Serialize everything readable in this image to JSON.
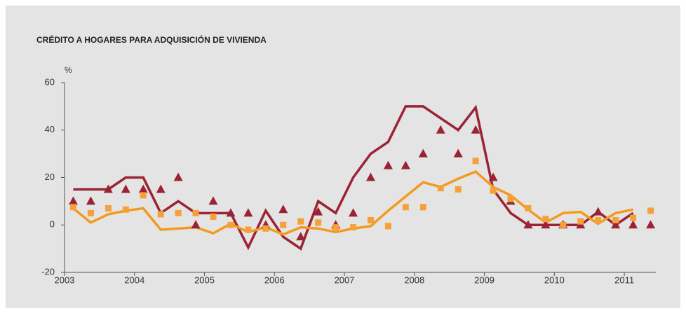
{
  "chart_data": {
    "type": "line",
    "title": "CRÉDITO A HOGARES PARA ADQUISICIÓN DE VIVIENDA",
    "y_unit": "%",
    "x": [
      2003.125,
      2003.375,
      2003.625,
      2003.875,
      2004.125,
      2004.375,
      2004.625,
      2004.875,
      2005.125,
      2005.375,
      2005.625,
      2005.875,
      2006.125,
      2006.375,
      2006.625,
      2006.875,
      2007.125,
      2007.375,
      2007.625,
      2007.875,
      2008.125,
      2008.375,
      2008.625,
      2008.875,
      2009.125,
      2009.375,
      2009.625,
      2009.875,
      2010.125,
      2010.375,
      2010.625,
      2010.875,
      2011.125,
      2011.375
    ],
    "series": [
      {
        "style": "line",
        "color": "#9b2335",
        "values": [
          15,
          15,
          15,
          20,
          20,
          5,
          10,
          5,
          5,
          5,
          -9.5,
          6,
          -5,
          -10,
          10,
          5,
          20,
          30,
          35,
          50,
          50,
          45,
          40,
          49.5,
          15,
          5,
          0,
          0,
          0,
          0,
          5.5,
          0,
          5,
          null
        ]
      },
      {
        "style": "line",
        "color": "#f39a1e",
        "values": [
          7,
          1,
          4.5,
          6,
          7,
          -2,
          -1.5,
          -1,
          -3.5,
          0.5,
          -3,
          -1,
          -4,
          -1,
          -1.5,
          -3,
          -1.5,
          -0.5,
          6,
          12,
          18,
          16,
          19.5,
          22.5,
          16,
          12.5,
          6.5,
          1,
          5,
          5.5,
          0.5,
          5,
          6.5,
          null
        ]
      },
      {
        "style": "markers",
        "marker": "triangle",
        "color": "#9b2335",
        "values": [
          10,
          10,
          15,
          15,
          15,
          15,
          20,
          0,
          10,
          5,
          5,
          0,
          6.5,
          -5,
          5.5,
          0,
          5,
          20,
          25,
          25,
          30,
          40,
          30,
          40,
          20,
          10,
          0,
          0,
          0,
          0,
          5.5,
          0,
          0,
          0
        ]
      },
      {
        "style": "markers",
        "marker": "square",
        "color": "#f5a038",
        "values": [
          7.5,
          5,
          7,
          6.5,
          12.5,
          4.5,
          5,
          5,
          3.5,
          0,
          -2,
          -1.5,
          0,
          1.5,
          1,
          -1,
          -1,
          2,
          -0.5,
          7.5,
          7.5,
          15.5,
          15,
          27,
          14.5,
          11,
          7,
          2.5,
          0,
          1.5,
          2,
          2,
          3,
          6
        ]
      }
    ],
    "xlim": [
      2003,
      2011.45
    ],
    "xticks": [
      2003,
      2004,
      2005,
      2006,
      2007,
      2008,
      2009,
      2010,
      2011
    ],
    "ylim": [
      -20,
      60
    ],
    "yticks": [
      -20,
      0,
      20,
      40,
      60
    ]
  }
}
